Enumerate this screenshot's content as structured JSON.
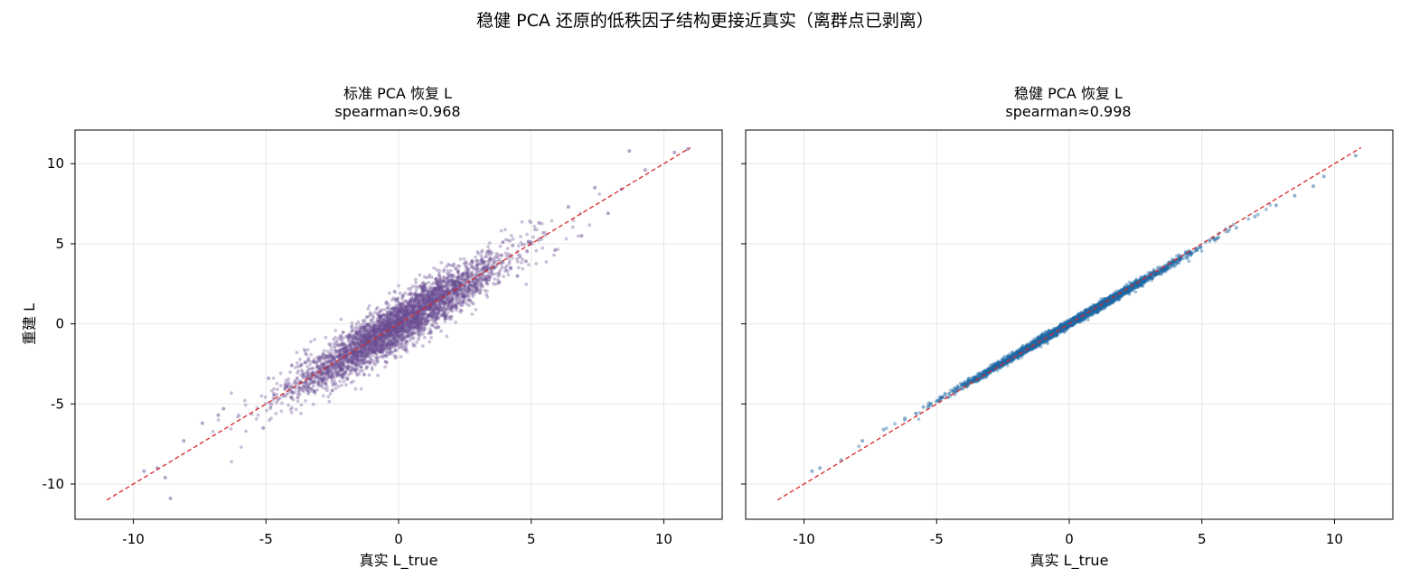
{
  "title": "稳健 PCA 还原的低秩因子结构更接近真实（离群点已剥离）",
  "colors": {
    "standard_points": "#6a4c93",
    "robust_points": "#1f6aa5",
    "identity_line": "#d62728",
    "grid": "#e6e6e6",
    "axes": "#000000"
  },
  "chart_data": [
    {
      "type": "scatter",
      "title_line1": "标准 PCA 恢复 L",
      "title_line2": "spearman≈0.968",
      "xlabel": "真实 L_true",
      "ylabel": "重建 L",
      "xlim": [
        -12.2,
        12.2
      ],
      "ylim": [
        -12.2,
        12.1
      ],
      "xticks": [
        -10,
        -5,
        0,
        5,
        10
      ],
      "yticks": [
        -10,
        -5,
        0,
        5,
        10
      ],
      "xtick_labels": [
        "-10",
        "-5",
        "0",
        "5",
        "10"
      ],
      "ytick_labels": [
        "-10",
        "-5",
        "0",
        "5",
        "10"
      ],
      "grid": true,
      "reference_line": {
        "style": "dashed",
        "from": [
          -11,
          -11
        ],
        "to": [
          11,
          11
        ]
      },
      "point_color": "#6a4c93",
      "spearman": 0.968,
      "points_sample": [
        [
          -9.6,
          -9.2
        ],
        [
          -9.1,
          -9.0
        ],
        [
          -8.8,
          -9.6
        ],
        [
          -8.6,
          -10.9
        ],
        [
          -8.1,
          -7.3
        ],
        [
          -7.4,
          -6.2
        ],
        [
          -6.8,
          -5.7
        ],
        [
          -6.6,
          -5.3
        ],
        [
          -5.1,
          -6.5
        ],
        [
          -4.9,
          -3.4
        ],
        [
          -4.2,
          -3.9
        ],
        [
          -3.8,
          -4.6
        ],
        [
          -3.5,
          -2.4
        ],
        [
          -3.0,
          -2.2
        ],
        [
          -2.6,
          -3.3
        ],
        [
          -2.1,
          -1.3
        ],
        [
          -1.6,
          -2.6
        ],
        [
          -1.2,
          -0.4
        ],
        [
          -0.8,
          -1.5
        ],
        [
          -0.3,
          0.6
        ],
        [
          0.2,
          -0.9
        ],
        [
          0.6,
          1.4
        ],
        [
          1.1,
          0.2
        ],
        [
          1.5,
          2.3
        ],
        [
          2.0,
          1.0
        ],
        [
          2.4,
          3.1
        ],
        [
          2.9,
          2.0
        ],
        [
          3.3,
          4.2
        ],
        [
          3.8,
          2.6
        ],
        [
          4.3,
          4.9
        ],
        [
          4.8,
          3.9
        ],
        [
          5.3,
          6.3
        ],
        [
          5.9,
          4.6
        ],
        [
          6.4,
          7.3
        ],
        [
          6.9,
          5.5
        ],
        [
          7.4,
          8.5
        ],
        [
          7.9,
          6.9
        ],
        [
          8.4,
          8.4
        ],
        [
          8.7,
          10.8
        ],
        [
          9.3,
          9.6
        ],
        [
          10.4,
          10.7
        ],
        [
          10.9,
          10.9
        ]
      ]
    },
    {
      "type": "scatter",
      "title_line1": "稳健 PCA 恢复 L",
      "title_line2": "spearman≈0.998",
      "xlabel": "真实 L_true",
      "ylabel": "",
      "xlim": [
        -12.2,
        12.2
      ],
      "ylim": [
        -12.2,
        12.1
      ],
      "xticks": [
        -10,
        -5,
        0,
        5,
        10
      ],
      "yticks": [
        -10,
        -5,
        0,
        5,
        10
      ],
      "xtick_labels": [
        "-10",
        "-5",
        "0",
        "5",
        "10"
      ],
      "ytick_labels": [],
      "grid": true,
      "reference_line": {
        "style": "dashed",
        "from": [
          -11,
          -11
        ],
        "to": [
          11,
          11
        ]
      },
      "point_color": "#1f6aa5",
      "spearman": 0.998,
      "points_sample": [
        [
          -9.7,
          -9.2
        ],
        [
          -9.4,
          -9.0
        ],
        [
          -8.6,
          -8.5
        ],
        [
          -7.8,
          -7.3
        ],
        [
          -7.0,
          -6.6
        ],
        [
          -6.2,
          -5.9
        ],
        [
          -5.5,
          -5.2
        ],
        [
          -4.8,
          -4.6
        ],
        [
          -4.0,
          -3.8
        ],
        [
          -3.2,
          -3.1
        ],
        [
          -2.5,
          -2.4
        ],
        [
          -1.7,
          -1.6
        ],
        [
          -0.9,
          -0.9
        ],
        [
          0.0,
          0.0
        ],
        [
          0.8,
          0.8
        ],
        [
          1.6,
          1.6
        ],
        [
          2.4,
          2.4
        ],
        [
          3.2,
          3.1
        ],
        [
          4.0,
          3.9
        ],
        [
          4.8,
          4.6
        ],
        [
          5.5,
          5.3
        ],
        [
          6.3,
          6.0
        ],
        [
          7.0,
          6.7
        ],
        [
          7.8,
          7.4
        ],
        [
          8.5,
          8.0
        ],
        [
          9.2,
          8.6
        ],
        [
          9.6,
          9.2
        ],
        [
          10.8,
          10.5
        ]
      ]
    }
  ]
}
